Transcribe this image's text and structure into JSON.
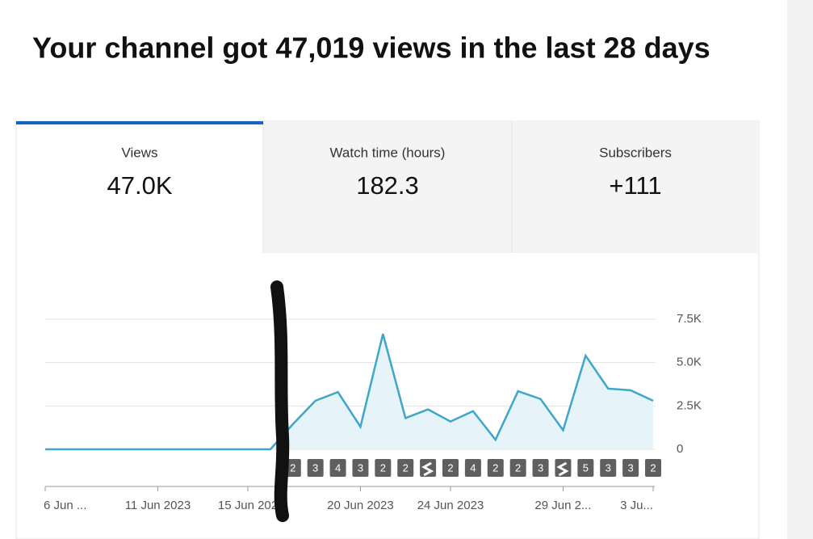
{
  "header": {
    "title": "Your channel got 47,019 views in the last 28 days"
  },
  "tabs": [
    {
      "label": "Views",
      "value": "47.0K"
    },
    {
      "label": "Watch time (hours)",
      "value": "182.3"
    },
    {
      "label": "Subscribers",
      "value": "+111"
    }
  ],
  "chart_data": {
    "type": "line",
    "color": "#3ea6c8",
    "categories": [
      "6 Jun ...",
      null,
      null,
      null,
      null,
      "11 Jun 2023",
      null,
      null,
      null,
      "15 Jun 202",
      null,
      null,
      null,
      null,
      "20 Jun 2023",
      null,
      null,
      null,
      "24 Jun 2023",
      null,
      null,
      null,
      null,
      "29 Jun 2...",
      null,
      null,
      null,
      "3 Ju..."
    ],
    "values": [
      0,
      0,
      0,
      0,
      0,
      0,
      0,
      0,
      0,
      0,
      0,
      1450,
      2800,
      3300,
      1300,
      6650,
      1800,
      2300,
      1600,
      2200,
      550,
      3350,
      2900,
      1100,
      5400,
      3500,
      3400,
      2800
    ],
    "badges": [
      null,
      null,
      null,
      null,
      null,
      null,
      null,
      null,
      null,
      null,
      null,
      "2",
      "3",
      "4",
      "3",
      "2",
      "2",
      null,
      "2",
      "4",
      "2",
      "2",
      "3",
      null,
      "5",
      "3",
      "3",
      "2"
    ],
    "ylim": [
      0,
      7500
    ],
    "yticks": [
      0,
      {
        "value": 2500,
        "label": "2.5K"
      },
      {
        "value": 5000,
        "label": "5.0K"
      },
      {
        "value": 7500,
        "label": "7.5K"
      }
    ],
    "grid": true
  }
}
